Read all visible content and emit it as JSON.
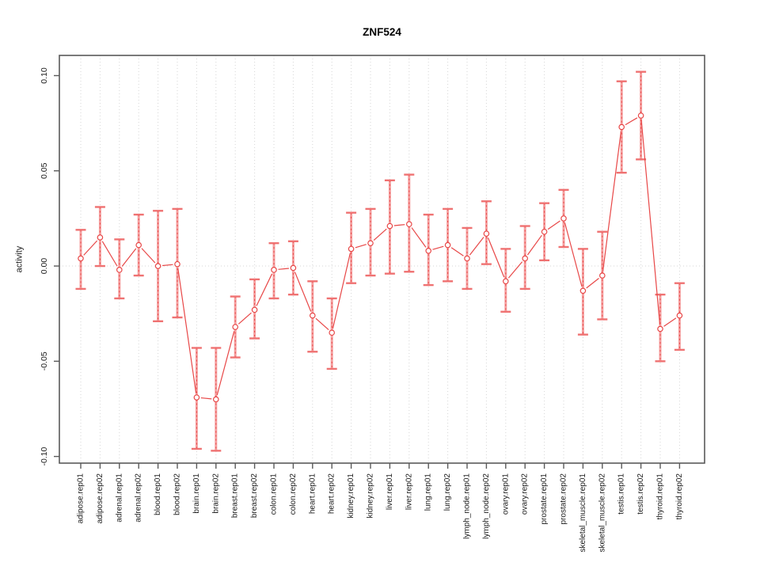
{
  "chart_data": {
    "type": "line",
    "title": "ZNF524",
    "xlabel": "",
    "ylabel": "activity",
    "ylim": [
      -0.1035,
      0.1106
    ],
    "ytick_values": [
      -0.1,
      -0.05,
      0.0,
      0.05,
      0.1
    ],
    "ytick_labels": [
      "-0.10",
      "-0.05",
      "0.00",
      "0.05",
      "0.10"
    ],
    "grid": "light dotted vertical line at every category; light dotted horizontal line at y=0",
    "legend": "none",
    "marker": "open-circle",
    "error_bars": true,
    "categories": [
      "adipose.rep01",
      "adipose.rep02",
      "adrenal.rep01",
      "adrenal.rep02",
      "blood.rep01",
      "blood.rep02",
      "brain.rep01",
      "brain.rep02",
      "breast.rep01",
      "breast.rep02",
      "colon.rep01",
      "colon.rep02",
      "heart.rep01",
      "heart.rep02",
      "kidney.rep01",
      "kidney.rep02",
      "liver.rep01",
      "liver.rep02",
      "lung.rep01",
      "lung.rep02",
      "lymph_node.rep01",
      "lymph_node.rep02",
      "ovary.rep01",
      "ovary.rep02",
      "prostate.rep01",
      "prostate.rep02",
      "skeletal_muscle.rep01",
      "skeletal_muscle.rep02",
      "testis.rep01",
      "testis.rep02",
      "thyroid.rep01",
      "thyroid.rep02"
    ],
    "series": [
      {
        "name": "activity",
        "values": [
          0.004,
          0.015,
          -0.002,
          0.011,
          0.0,
          0.001,
          -0.069,
          -0.07,
          -0.032,
          -0.023,
          -0.002,
          -0.001,
          -0.026,
          -0.035,
          0.009,
          0.012,
          0.021,
          0.022,
          0.008,
          0.011,
          0.004,
          0.017,
          -0.008,
          0.004,
          0.018,
          0.025,
          -0.013,
          -0.005,
          0.073,
          0.079,
          -0.033,
          -0.026
        ],
        "error_low": [
          -0.012,
          0.0,
          -0.017,
          -0.005,
          -0.029,
          -0.027,
          -0.096,
          -0.097,
          -0.048,
          -0.038,
          -0.017,
          -0.015,
          -0.045,
          -0.054,
          -0.009,
          -0.005,
          -0.004,
          -0.003,
          -0.01,
          -0.008,
          -0.012,
          0.001,
          -0.024,
          -0.012,
          0.003,
          0.01,
          -0.036,
          -0.028,
          0.049,
          0.056,
          -0.05,
          -0.044
        ],
        "error_high": [
          0.019,
          0.031,
          0.014,
          0.027,
          0.029,
          0.03,
          -0.043,
          -0.043,
          -0.016,
          -0.007,
          0.012,
          0.013,
          -0.008,
          -0.017,
          0.028,
          0.03,
          0.045,
          0.048,
          0.027,
          0.03,
          0.02,
          0.034,
          0.009,
          0.021,
          0.033,
          0.04,
          0.009,
          0.018,
          0.097,
          0.102,
          -0.015,
          -0.009
        ]
      }
    ],
    "colors": {
      "series_line": "#e84747",
      "marker_stroke": "#e84747",
      "error_bar_fill": "#f5a0a0",
      "error_bar_cap": "#ef7272",
      "grid": "#d6d6d6",
      "axis": "#5a5a5a",
      "text": "#1c1c1c"
    }
  }
}
